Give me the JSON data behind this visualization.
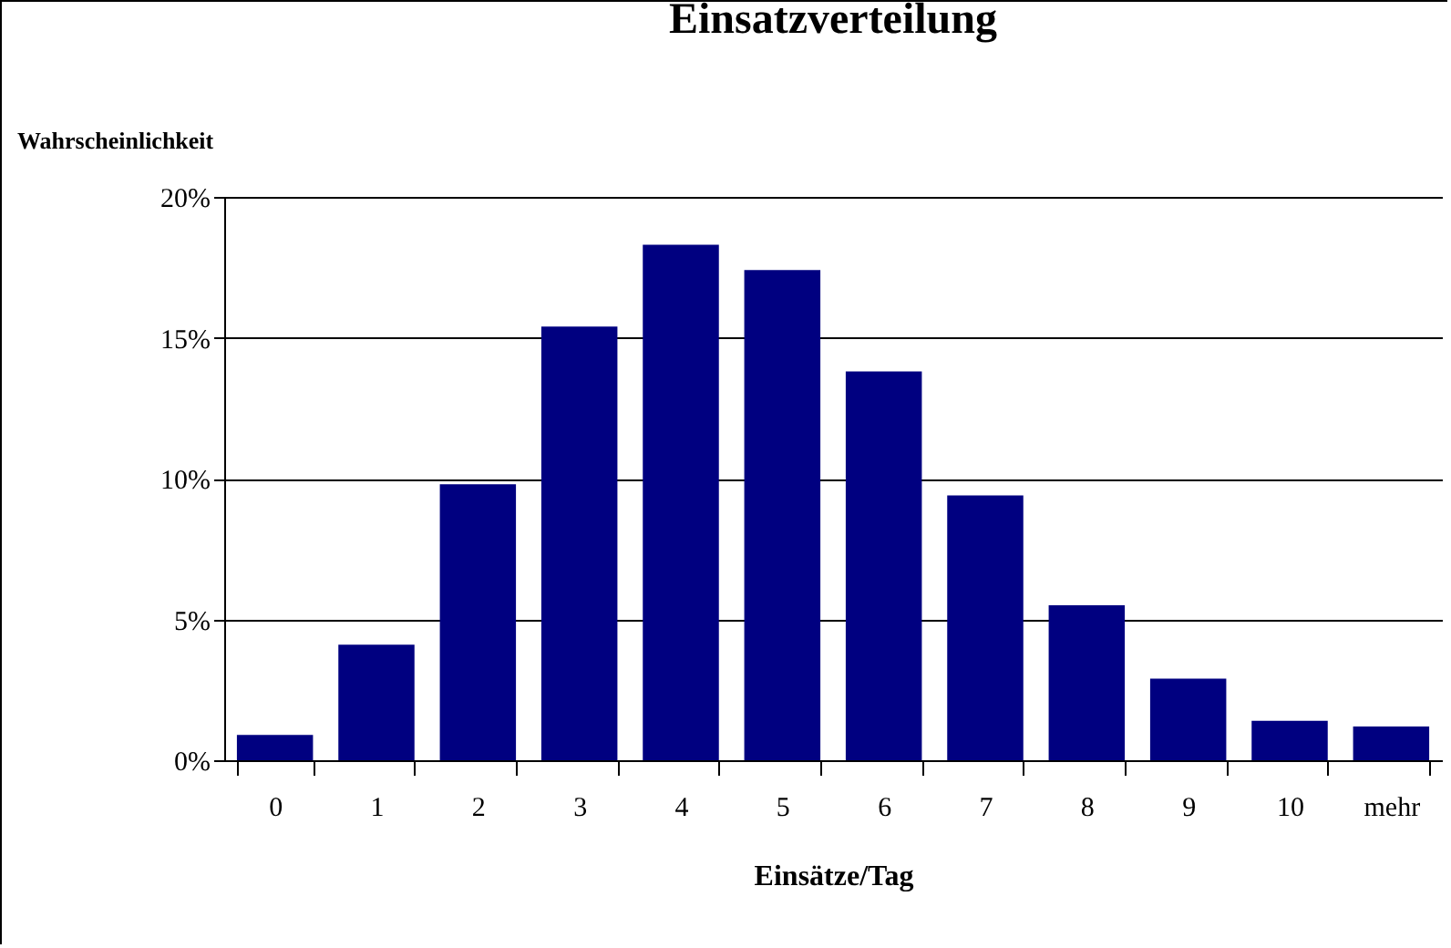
{
  "chart_data": {
    "type": "bar",
    "title": "Einsatzverteilung",
    "xlabel": "Einsätze/Tag",
    "ylabel": "Wahrscheinlichkeit",
    "categories": [
      "0",
      "1",
      "2",
      "3",
      "4",
      "5",
      "6",
      "7",
      "8",
      "9",
      "10",
      "mehr"
    ],
    "values": [
      0.9,
      4.1,
      9.8,
      15.4,
      18.3,
      17.4,
      13.8,
      9.4,
      5.5,
      2.9,
      1.4,
      1.2
    ],
    "color": "#000080",
    "ylim": [
      0,
      20
    ],
    "yticks": [
      {
        "value": 0,
        "label": "0%"
      },
      {
        "value": 5,
        "label": "5%"
      },
      {
        "value": 10,
        "label": "10%"
      },
      {
        "value": 15,
        "label": "15%"
      },
      {
        "value": 20,
        "label": "20%"
      }
    ],
    "grid": "y"
  }
}
